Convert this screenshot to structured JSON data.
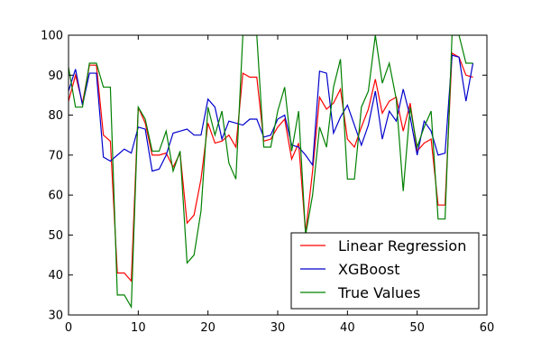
{
  "chart_data": {
    "type": "line",
    "title": "",
    "xlabel": "",
    "ylabel": "",
    "xlim": [
      0,
      60
    ],
    "ylim": [
      30,
      100
    ],
    "xticks": [
      0,
      10,
      20,
      30,
      40,
      50,
      60
    ],
    "yticks": [
      30,
      40,
      50,
      60,
      70,
      80,
      90,
      100
    ],
    "grid": false,
    "legend_position": "lower-right",
    "series": [
      {
        "name": "Linear Regression",
        "color": "#ff0000",
        "values": [
          83.5,
          90,
          83,
          92.5,
          92.5,
          75,
          73.5,
          40.5,
          40.5,
          38.5,
          82,
          78,
          70,
          70,
          70.5,
          67,
          70.5,
          53,
          55,
          64,
          78,
          73,
          73.5,
          75,
          72,
          90.5,
          89.5,
          89.5,
          73.5,
          74,
          77,
          79,
          69,
          73,
          50.5,
          66,
          84.5,
          81.5,
          83,
          86.5,
          74,
          72,
          77,
          81.5,
          89,
          80.5,
          83.5,
          84.5,
          76,
          83,
          71,
          73,
          74,
          57.5,
          57.5,
          95.5,
          94.5,
          90,
          89.5
        ]
      },
      {
        "name": "XGBoost",
        "color": "#0000cc",
        "values": [
          86,
          91.5,
          82.5,
          90.5,
          90.5,
          69.5,
          68.5,
          70,
          71.5,
          70.5,
          77,
          76.5,
          66,
          66.5,
          70,
          75.5,
          76,
          76.5,
          75,
          75,
          84,
          82,
          74,
          78.5,
          78,
          77.5,
          79,
          79,
          74.5,
          75,
          79,
          80,
          72.5,
          72,
          70,
          67.5,
          91,
          90.5,
          75.5,
          79.5,
          82.5,
          77.5,
          72.5,
          77.5,
          86,
          74,
          81,
          78.5,
          86.5,
          79.5,
          70,
          78.5,
          76,
          70,
          70.5,
          95,
          94.5,
          83.5,
          93
        ]
      },
      {
        "name": "True Values",
        "color": "#008000",
        "values": [
          92,
          82,
          82,
          93,
          93,
          87,
          87,
          35,
          35,
          32,
          82,
          79,
          71,
          71,
          76,
          66,
          71,
          43,
          45,
          56,
          82,
          75,
          81,
          68,
          64,
          100,
          100,
          100,
          72,
          72,
          81,
          87,
          71,
          81,
          50,
          60,
          77,
          72,
          87,
          94,
          64,
          64,
          82,
          86,
          100,
          88,
          93,
          84,
          61,
          82,
          72,
          77,
          81,
          54,
          54,
          100,
          100,
          93,
          93
        ]
      }
    ]
  }
}
